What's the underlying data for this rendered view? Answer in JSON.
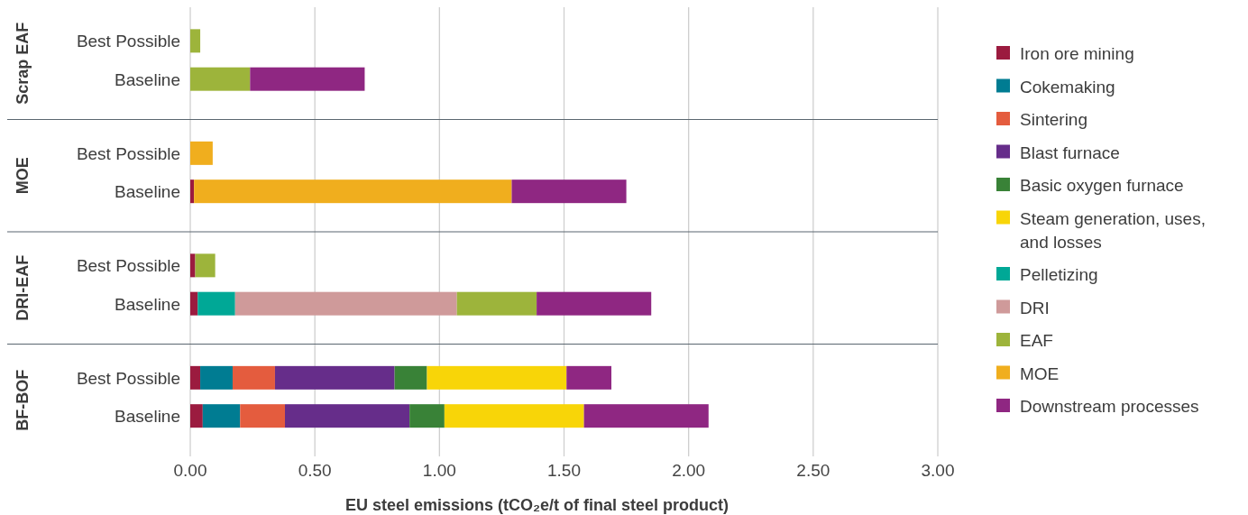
{
  "chart_data": {
    "type": "bar",
    "orientation": "horizontal",
    "stacked": true,
    "xlabel": "EU steel emissions (tCO₂e/t of final steel product)",
    "categories": [
      "Best Possible",
      "Baseline",
      "Best Possible",
      "Baseline",
      "Best Possible",
      "Baseline",
      "Best Possible",
      "Baseline"
    ],
    "annotations": [
      "Scrap EAF",
      "MOE",
      "DRI-EAF",
      "BF-BOF"
    ],
    "xlim": [
      0,
      3
    ],
    "xticks": [
      {
        "value": 0,
        "label": "0.00"
      },
      {
        "value": 0.5,
        "label": "0.50"
      },
      {
        "value": 1,
        "label": "1.00"
      },
      {
        "value": 1.5,
        "label": "1.50"
      },
      {
        "value": 2,
        "label": "2.00"
      },
      {
        "value": 2.5,
        "label": "2.50"
      },
      {
        "value": 3,
        "label": "3.00"
      }
    ],
    "grid": "x",
    "legend": "right",
    "series": [
      {
        "name": "Iron ore mining",
        "color": "#9b1b3f",
        "values": [
          null,
          null,
          null,
          0.015,
          0.02,
          0.03,
          0.04,
          0.05
        ]
      },
      {
        "name": "Cokemaking",
        "color": "#007c92",
        "values": [
          null,
          null,
          null,
          null,
          null,
          null,
          0.13,
          0.15
        ]
      },
      {
        "name": "Sintering",
        "color": "#e45c3e",
        "values": [
          null,
          null,
          null,
          null,
          null,
          null,
          0.17,
          0.18
        ]
      },
      {
        "name": "Blast furnace",
        "color": "#662d8a",
        "values": [
          null,
          null,
          null,
          null,
          null,
          null,
          0.48,
          0.5
        ]
      },
      {
        "name": "Basic oxygen furnace",
        "color": "#398237",
        "values": [
          null,
          null,
          null,
          null,
          null,
          null,
          0.13,
          0.14
        ]
      },
      {
        "name": "Steam generation, uses, and losses",
        "color": "#f8d508",
        "values": [
          null,
          null,
          null,
          null,
          null,
          null,
          0.56,
          0.56
        ]
      },
      {
        "name": "Pelletizing",
        "color": "#00a896",
        "values": [
          null,
          null,
          null,
          null,
          null,
          0.15,
          null,
          null
        ]
      },
      {
        "name": "DRI",
        "color": "#cf9a9a",
        "values": [
          null,
          null,
          null,
          null,
          null,
          0.89,
          null,
          null
        ]
      },
      {
        "name": "EAF",
        "color": "#9db43b",
        "values": [
          0.04,
          0.24,
          null,
          null,
          0.08,
          0.32,
          null,
          null
        ]
      },
      {
        "name": "MOE",
        "color": "#f0ae1e",
        "values": [
          null,
          null,
          0.09,
          1.275,
          null,
          null,
          null,
          null
        ]
      },
      {
        "name": "Downstream processes",
        "color": "#8f2782",
        "values": [
          null,
          0.46,
          null,
          0.46,
          null,
          0.46,
          0.18,
          0.5
        ]
      }
    ]
  }
}
